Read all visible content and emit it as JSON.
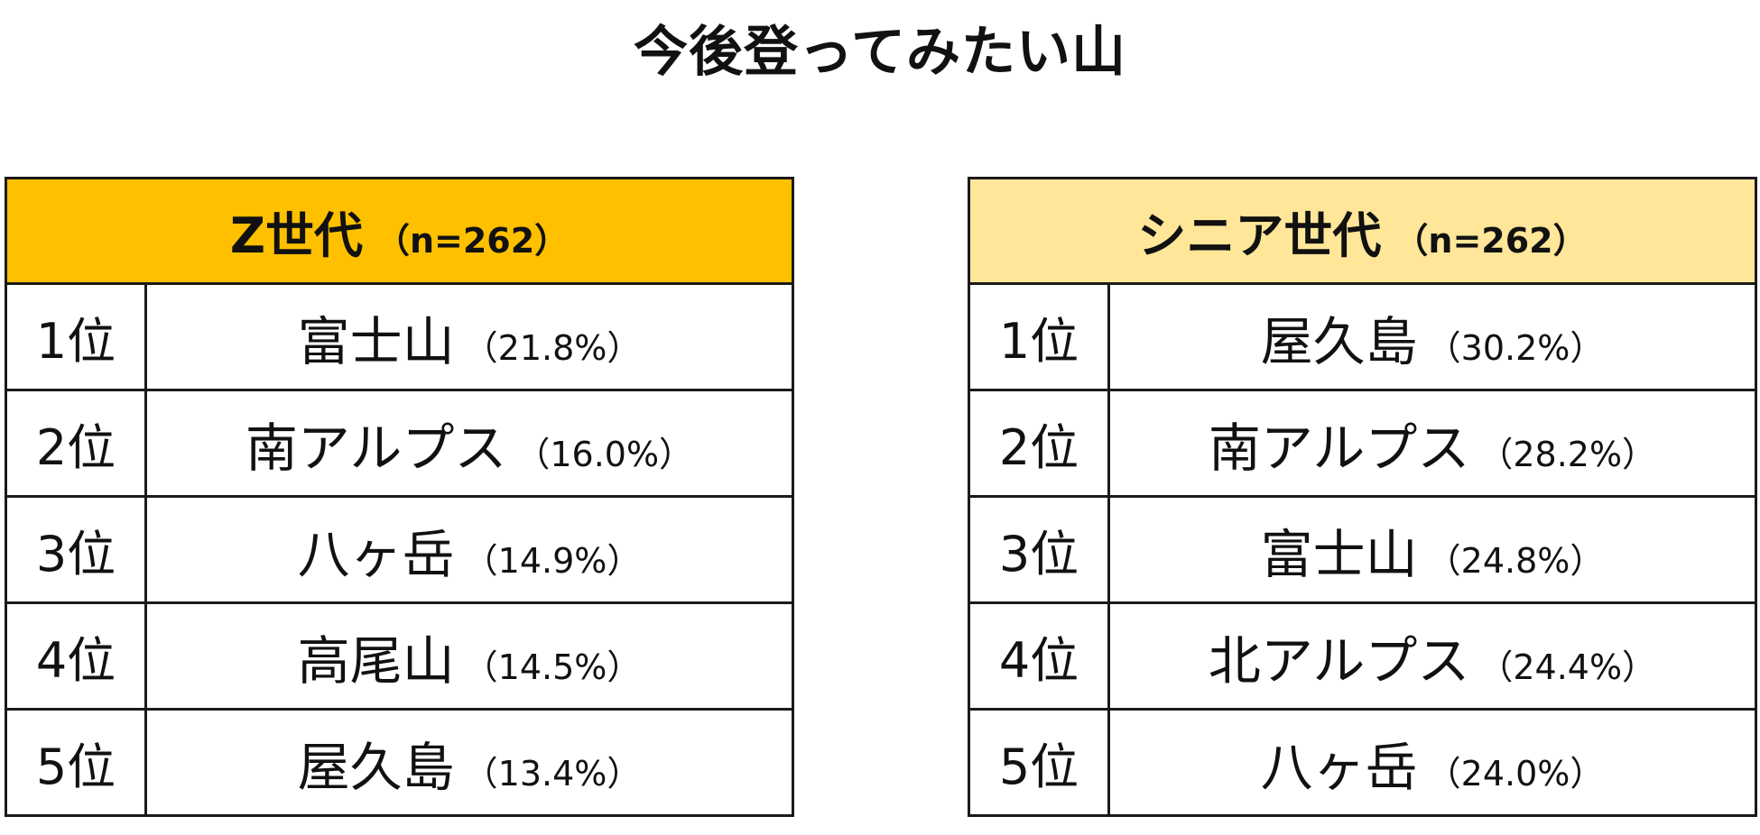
{
  "title": "今後登ってみたい山",
  "tables": [
    {
      "group": "Z世代",
      "n": "（n=262）",
      "header_color": "#ffc000",
      "rows": [
        {
          "rank": "1位",
          "name": "富士山",
          "pct": "（21.8%）"
        },
        {
          "rank": "2位",
          "name": "南アルプス",
          "pct": "（16.0%）"
        },
        {
          "rank": "3位",
          "name": "八ヶ岳",
          "pct": "（14.9%）"
        },
        {
          "rank": "4位",
          "name": "高尾山",
          "pct": "（14.5%）"
        },
        {
          "rank": "5位",
          "name": "屋久島",
          "pct": "（13.4%）"
        }
      ]
    },
    {
      "group": "シニア世代",
      "n": "（n=262）",
      "header_color": "#ffe699",
      "rows": [
        {
          "rank": "1位",
          "name": "屋久島",
          "pct": "（30.2%）"
        },
        {
          "rank": "2位",
          "name": "南アルプス",
          "pct": "（28.2%）"
        },
        {
          "rank": "3位",
          "name": "富士山",
          "pct": "（24.8%）"
        },
        {
          "rank": "4位",
          "name": "北アルプス",
          "pct": "（24.4%）"
        },
        {
          "rank": "5位",
          "name": "八ヶ岳",
          "pct": "（24.0%）"
        }
      ]
    }
  ]
}
